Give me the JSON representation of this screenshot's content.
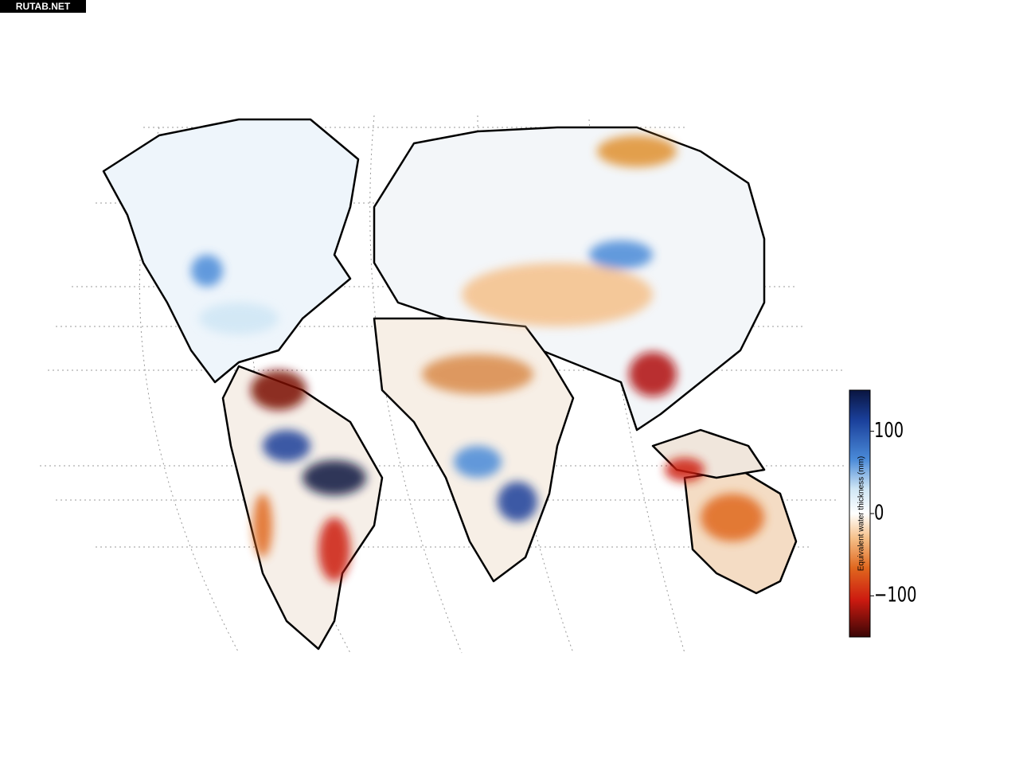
{
  "watermark": "RUTAB.NET",
  "colorbar": {
    "label": "Equivalent water thickness (mm)",
    "lim": [
      -150,
      150
    ],
    "ticks": [
      100,
      0,
      {
        "value": -100,
        "label": "−100"
      }
    ]
  }
}
